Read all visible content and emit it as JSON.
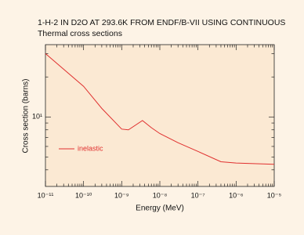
{
  "chart_data": {
    "type": "line",
    "title": "1-H-2 IN D2O AT 293.6K FROM ENDF/B-VII USING CONTINUOUS",
    "subtitle": "Thermal cross sections",
    "x_label": "Energy (MeV)",
    "y_label": "Cross section (barns)",
    "x": [
      1e-11,
      1e-10,
      3e-10,
      1e-09,
      1.5e-09,
      3.5e-09,
      6e-09,
      1e-08,
      3e-08,
      1e-07,
      4e-07,
      1e-06,
      1e-05
    ],
    "series": [
      {
        "name": "inelastic",
        "color": "#e0302f",
        "values": [
          30,
          17,
          11.6,
          8.1,
          8.0,
          9.4,
          8.3,
          7.5,
          6.4,
          5.5,
          4.6,
          4.5,
          4.4
        ]
      }
    ],
    "xlim": [
      1e-11,
      1e-05
    ],
    "xticks": [
      {
        "value": 1e-11,
        "label": "10⁻¹¹"
      },
      {
        "value": 1e-10,
        "label": "10⁻¹⁰"
      },
      {
        "value": 1e-09,
        "label": "10⁻⁹"
      },
      {
        "value": 1e-08,
        "label": "10⁻⁸"
      },
      {
        "value": 1e-07,
        "label": "10⁻⁷"
      },
      {
        "value": 1e-06,
        "label": "10⁻⁶"
      },
      {
        "value": 1e-05,
        "label": "10⁻⁵"
      }
    ],
    "ylim": [
      3,
      35
    ],
    "yticks": [
      {
        "value": 10,
        "label": "10¹"
      }
    ],
    "xscale": "log",
    "yscale": "log",
    "legend": "lower left"
  }
}
